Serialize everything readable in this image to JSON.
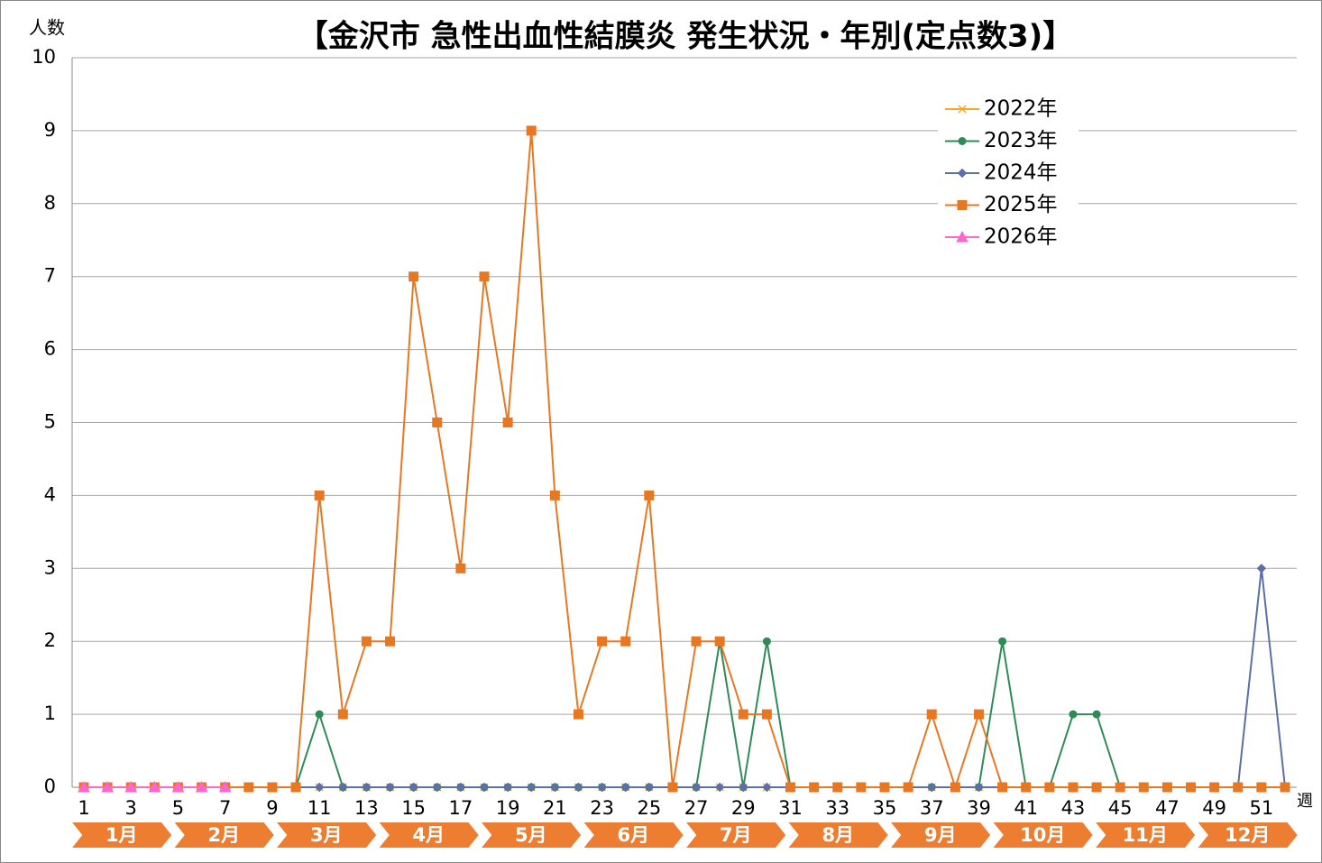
{
  "chart_data": {
    "type": "line",
    "title": "【金沢市 急性出血性結膜炎 発生状況・年別(定点数3)】",
    "y_label": "人数",
    "x_unit": "週",
    "categories": [
      1,
      null,
      3,
      null,
      5,
      null,
      7,
      null,
      9,
      null,
      11,
      null,
      13,
      null,
      15,
      null,
      17,
      null,
      19,
      null,
      21,
      null,
      23,
      null,
      25,
      null,
      27,
      null,
      29,
      null,
      31,
      null,
      33,
      null,
      35,
      null,
      37,
      null,
      39,
      null,
      41,
      null,
      43,
      null,
      45,
      null,
      47,
      null,
      49,
      null,
      51,
      null
    ],
    "month_labels": [
      "1月",
      "2月",
      "3月",
      "4月",
      "5月",
      "6月",
      "7月",
      "8月",
      "9月",
      "10月",
      "11月",
      "12月"
    ],
    "month_band_color": "#ed7d31",
    "ylim": [
      0,
      10
    ],
    "yticks": [
      0,
      1,
      2,
      3,
      4,
      5,
      6,
      7,
      8,
      9,
      10
    ],
    "grid": true,
    "legend": "upper right",
    "series": [
      {
        "name": "2022年",
        "color": "#f5a623",
        "marker": "x",
        "values": [
          0,
          0,
          0,
          0,
          0,
          0,
          0,
          0,
          0,
          0,
          0,
          0,
          0,
          0,
          0,
          0,
          0,
          0,
          0,
          0,
          0,
          0,
          0,
          0,
          0,
          0,
          0,
          0,
          0,
          0,
          0,
          0,
          0,
          0,
          0,
          0,
          0,
          0,
          0,
          0,
          0,
          0,
          0,
          0,
          0,
          0,
          0,
          0,
          0,
          0,
          0,
          0
        ]
      },
      {
        "name": "2023年",
        "color": "#2e8b57",
        "marker": "circle",
        "values": [
          0,
          0,
          0,
          0,
          0,
          0,
          0,
          0,
          0,
          0,
          1,
          0,
          0,
          0,
          0,
          0,
          0,
          0,
          0,
          0,
          0,
          0,
          0,
          0,
          0,
          0,
          0,
          2,
          0,
          2,
          0,
          0,
          0,
          0,
          0,
          0,
          0,
          0,
          0,
          2,
          0,
          0,
          1,
          1,
          0,
          0,
          0,
          0,
          0,
          0,
          0,
          0
        ]
      },
      {
        "name": "2024年",
        "color": "#5b6fa8",
        "marker": "diamond",
        "values": [
          0,
          0,
          0,
          0,
          0,
          0,
          0,
          0,
          0,
          0,
          0,
          0,
          0,
          0,
          0,
          0,
          0,
          0,
          0,
          0,
          0,
          0,
          0,
          0,
          0,
          0,
          0,
          0,
          0,
          0,
          0,
          0,
          0,
          0,
          0,
          0,
          0,
          0,
          0,
          0,
          0,
          0,
          0,
          0,
          0,
          0,
          0,
          0,
          0,
          0,
          3,
          0
        ]
      },
      {
        "name": "2025年",
        "color": "#e87722",
        "marker": "square",
        "values": [
          0,
          0,
          0,
          0,
          0,
          0,
          0,
          0,
          0,
          0,
          4,
          1,
          2,
          2,
          7,
          5,
          3,
          7,
          5,
          9,
          4,
          1,
          2,
          2,
          4,
          0,
          2,
          2,
          1,
          1,
          0,
          0,
          0,
          0,
          0,
          0,
          1,
          0,
          1,
          0,
          0,
          0,
          0,
          0,
          0,
          0,
          0,
          0,
          0,
          0,
          0,
          0
        ]
      },
      {
        "name": "2026年",
        "color": "#ff66cc",
        "marker": "triangle",
        "values": [
          0,
          0,
          0,
          0,
          0,
          0,
          0,
          null,
          null,
          null,
          null,
          null,
          null,
          null,
          null,
          null,
          null,
          null,
          null,
          null,
          null,
          null,
          null,
          null,
          null,
          null,
          null,
          null,
          null,
          null,
          null,
          null,
          null,
          null,
          null,
          null,
          null,
          null,
          null,
          null,
          null,
          null,
          null,
          null,
          null,
          null,
          null,
          null,
          null,
          null,
          null,
          null
        ]
      }
    ]
  }
}
